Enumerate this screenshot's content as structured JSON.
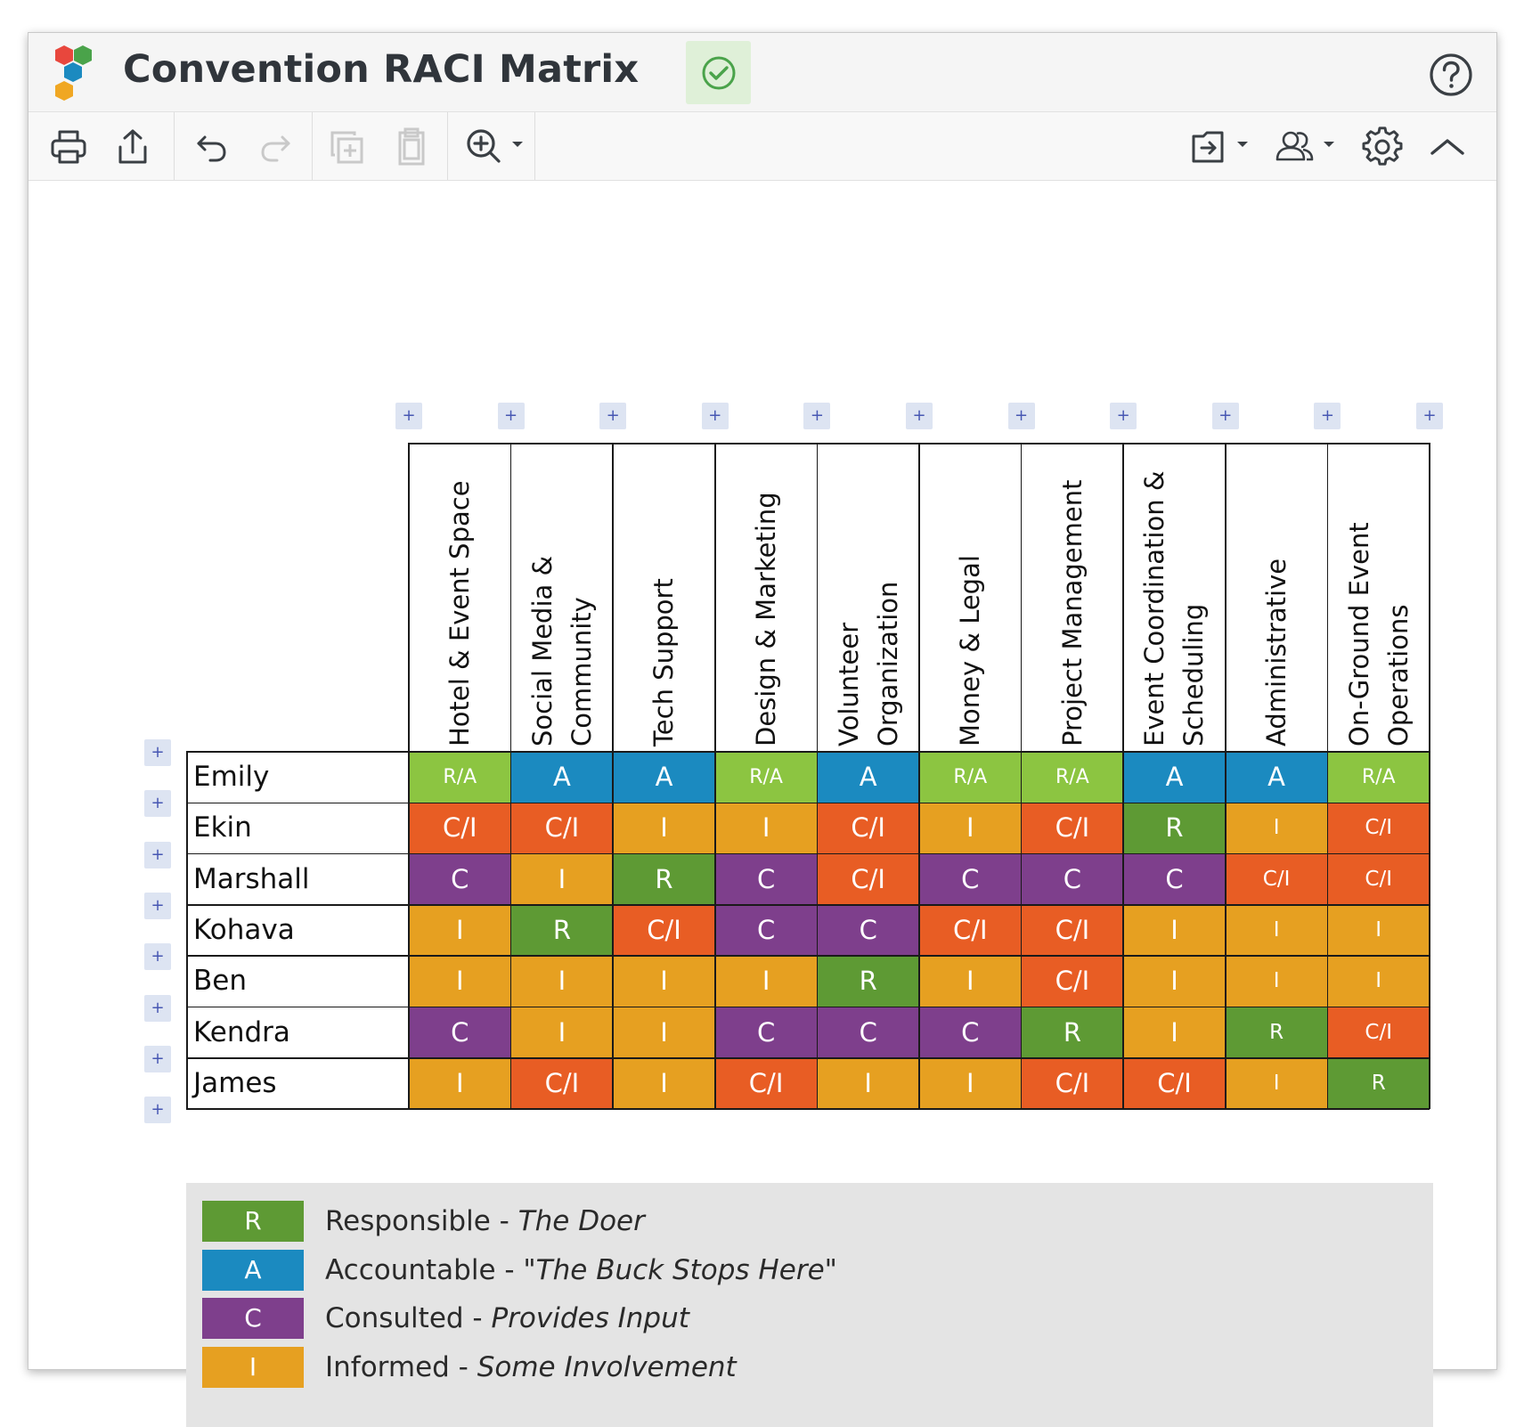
{
  "app": {
    "title": "Convention RACI Matrix",
    "icons": {
      "logo": "hexagon-logo-icon",
      "saved": "check-circle-icon",
      "help": "help-circle-icon"
    }
  },
  "toolbar": {
    "icons": [
      "print-icon",
      "share-export-icon",
      "undo-icon",
      "redo-icon",
      "duplicate-icon",
      "paste-icon",
      "zoom-in-icon",
      "move-to-folder-icon",
      "share-users-icon",
      "settings-gear-icon",
      "collapse-chevron-icon"
    ]
  },
  "colors": {
    "R": "#5e9a34",
    "A": "#1b8ac0",
    "C": "#7e3f8c",
    "I": "#e6a021",
    "CI": "#e85d24",
    "RA": "#8cc541",
    "header_icon": "#3a3f44",
    "disabled_icon": "#c9c9c9",
    "add_button_bg": "#dde4f2",
    "add_button_fg": "#4757b3"
  },
  "matrix": {
    "columns": [
      [
        "Hotel & Event Space"
      ],
      [
        "Social Media &",
        "Community"
      ],
      [
        "Tech Support"
      ],
      [
        "Design & Marketing"
      ],
      [
        "Volunteer",
        "Organization"
      ],
      [
        "Money & Legal"
      ],
      [
        "Project Management"
      ],
      [
        "Event Coordination &",
        "Scheduling"
      ],
      [
        "Administrative"
      ],
      [
        "On-Ground Event",
        "Operations"
      ]
    ],
    "rows": [
      {
        "name": "Emily",
        "cells": [
          "R/A",
          "A",
          "A",
          "R/A",
          "A",
          "R/A",
          "R/A",
          "A",
          "A",
          "R/A"
        ]
      },
      {
        "name": "Ekin",
        "cells": [
          "C/I",
          "C/I",
          "I",
          "I",
          "C/I",
          "I",
          "C/I",
          "R",
          "I",
          "C/I"
        ]
      },
      {
        "name": "Marshall",
        "cells": [
          "C",
          "I",
          "R",
          "C",
          "C/I",
          "C",
          "C",
          "C",
          "C/I",
          "C/I"
        ]
      },
      {
        "name": "Kohava",
        "cells": [
          "I",
          "R",
          "C/I",
          "C",
          "C",
          "C/I",
          "C/I",
          "I",
          "I",
          "I"
        ]
      },
      {
        "name": "Ben",
        "cells": [
          "I",
          "I",
          "I",
          "I",
          "R",
          "I",
          "C/I",
          "I",
          "I",
          "I"
        ]
      },
      {
        "name": "Kendra",
        "cells": [
          "C",
          "I",
          "I",
          "C",
          "C",
          "C",
          "R",
          "I",
          "R",
          "C/I"
        ]
      },
      {
        "name": "James",
        "cells": [
          "I",
          "C/I",
          "I",
          "C/I",
          "I",
          "I",
          "C/I",
          "C/I",
          "I",
          "R"
        ]
      }
    ],
    "add_label": "+"
  },
  "legend": [
    {
      "letter": "R",
      "role": "Responsible",
      "sep": " - ",
      "desc": "The Doer",
      "color": "#5e9a34"
    },
    {
      "letter": "A",
      "role": "Accountable",
      "sep": " - ",
      "desc": "\"The Buck Stops Here\"",
      "color": "#1b8ac0"
    },
    {
      "letter": "C",
      "role": "Consulted",
      "sep": " - ",
      "desc": "Provides Input",
      "color": "#7e3f8c"
    },
    {
      "letter": "I",
      "role": "Informed",
      "sep": " - ",
      "desc": "Some Involvement",
      "color": "#e6a021"
    }
  ]
}
